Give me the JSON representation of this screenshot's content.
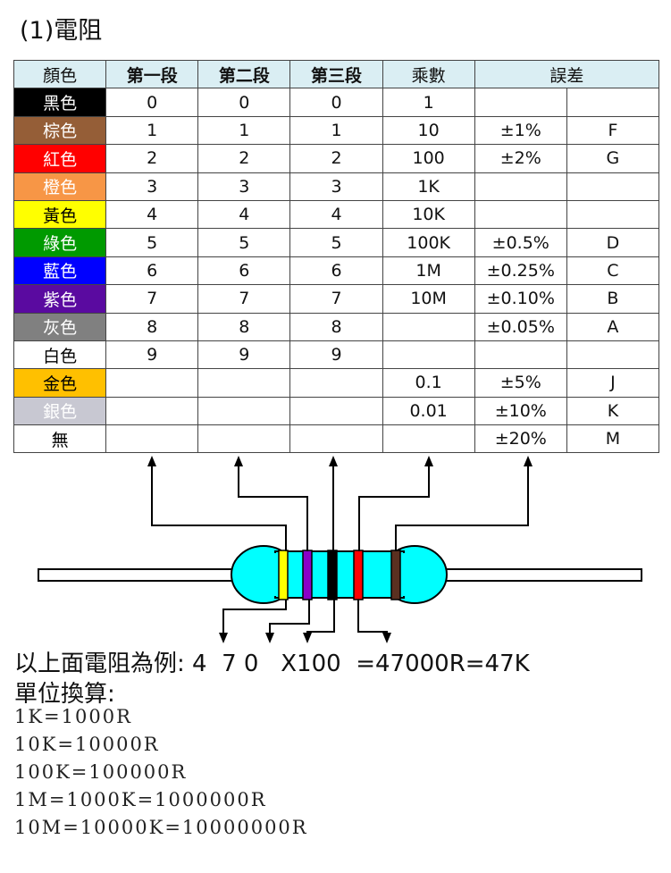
{
  "title": "(1)電阻",
  "table": {
    "headers": [
      "顏色",
      "第一段",
      "第二段",
      "第三段",
      "乘數",
      "誤差"
    ],
    "rows": [
      {
        "color": "黑色",
        "bg": "#000000",
        "fg": "#ffffff",
        "d1": "0",
        "d2": "0",
        "d3": "0",
        "mult": "1",
        "tol": "",
        "code": ""
      },
      {
        "color": "棕色",
        "bg": "#955e37",
        "fg": "#ffffff",
        "d1": "1",
        "d2": "1",
        "d3": "1",
        "mult": "10",
        "tol": "±1%",
        "code": "F"
      },
      {
        "color": "紅色",
        "bg": "#ff0000",
        "fg": "#ffffff",
        "d1": "2",
        "d2": "2",
        "d3": "2",
        "mult": "100",
        "tol": "±2%",
        "code": "G"
      },
      {
        "color": "橙色",
        "bg": "#f79646",
        "fg": "#ffffff",
        "d1": "3",
        "d2": "3",
        "d3": "3",
        "mult": "1K",
        "tol": "",
        "code": ""
      },
      {
        "color": "黃色",
        "bg": "#ffff00",
        "fg": "#000000",
        "d1": "4",
        "d2": "4",
        "d3": "4",
        "mult": "10K",
        "tol": "",
        "code": ""
      },
      {
        "color": "綠色",
        "bg": "#009a00",
        "fg": "#ffffff",
        "d1": "5",
        "d2": "5",
        "d3": "5",
        "mult": "100K",
        "tol": "±0.5%",
        "code": "D"
      },
      {
        "color": "藍色",
        "bg": "#0000ff",
        "fg": "#ffffff",
        "d1": "6",
        "d2": "6",
        "d3": "6",
        "mult": "1M",
        "tol": "±0.25%",
        "code": "C"
      },
      {
        "color": "紫色",
        "bg": "#5a0aa0",
        "fg": "#ffffff",
        "d1": "7",
        "d2": "7",
        "d3": "7",
        "mult": "10M",
        "tol": "±0.10%",
        "code": "B"
      },
      {
        "color": "灰色",
        "bg": "#808080",
        "fg": "#ffffff",
        "d1": "8",
        "d2": "8",
        "d3": "8",
        "mult": "",
        "tol": "±0.05%",
        "code": "A"
      },
      {
        "color": "白色",
        "bg": "#ffffff",
        "fg": "#000000",
        "d1": "9",
        "d2": "9",
        "d3": "9",
        "mult": "",
        "tol": "",
        "code": ""
      },
      {
        "color": "金色",
        "bg": "#ffc000",
        "fg": "#000000",
        "d1": "",
        "d2": "",
        "d3": "",
        "mult": "0.1",
        "tol": "±5%",
        "code": "J"
      },
      {
        "color": "銀色",
        "bg": "#c8c8d2",
        "fg": "#ffffff",
        "d1": "",
        "d2": "",
        "d3": "",
        "mult": "0.01",
        "tol": "±10%",
        "code": "K"
      },
      {
        "color": "無",
        "bg": "#ffffff",
        "fg": "#000000",
        "d1": "",
        "d2": "",
        "d3": "",
        "mult": "",
        "tol": "±20%",
        "code": "M"
      }
    ]
  },
  "resistor": {
    "body_color": "#00ffff",
    "bands": [
      "#ffff00",
      "#8a00c8",
      "#000000",
      "#ff0000",
      "#5a3020"
    ]
  },
  "example": "以上面電阻為例: 4  7 0   X100  =47000R=47K",
  "units_title": "單位換算:",
  "units": [
    "1K=1000R",
    "10K=10000R",
    "100K=100000R",
    "1M=1000K=1000000R",
    "10M=10000K=10000000R"
  ]
}
